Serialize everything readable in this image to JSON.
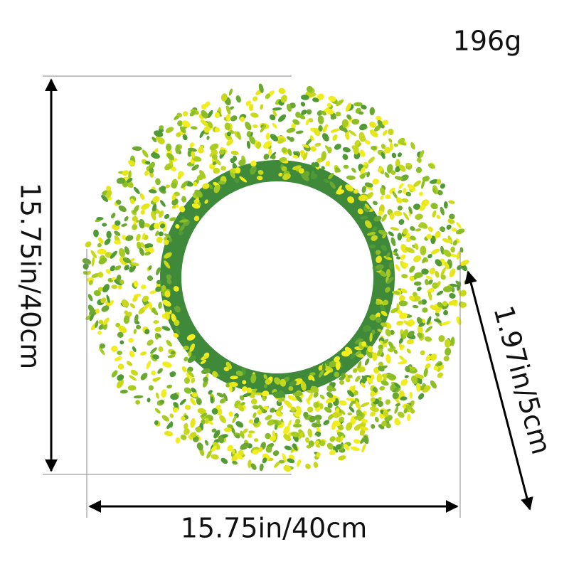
{
  "weight": "196g",
  "dimensions": {
    "height": "15.75in/40cm",
    "width": "15.75in/40cm",
    "depth": "1.97in/5cm"
  }
}
